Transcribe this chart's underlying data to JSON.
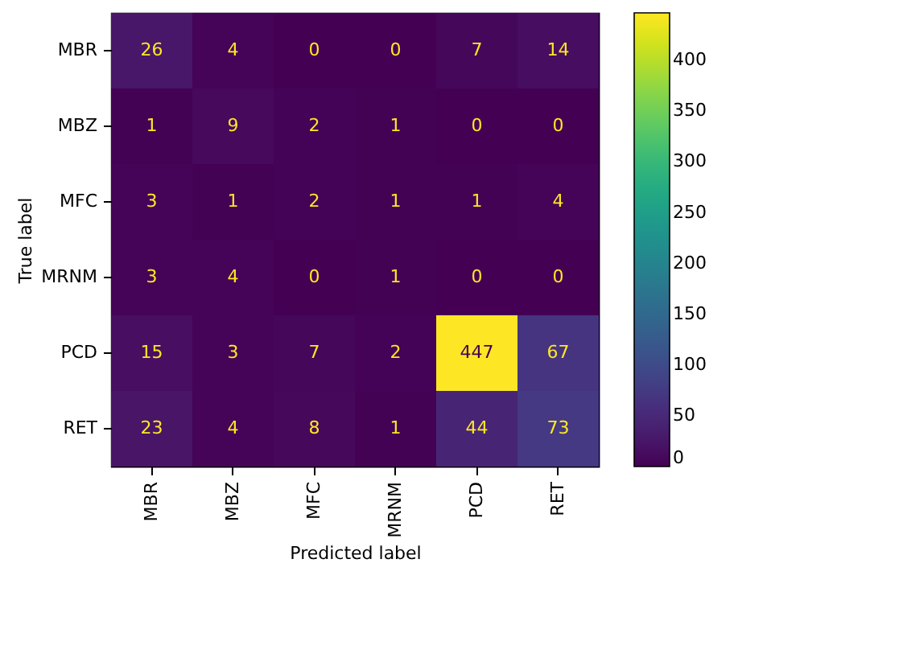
{
  "chart_data": {
    "type": "heatmap",
    "xlabel": "Predicted label",
    "ylabel": "True label",
    "categories": [
      "MBR",
      "MBZ",
      "MFC",
      "MRNM",
      "PCD",
      "RET"
    ],
    "y_categories": [
      "MBR",
      "MBZ",
      "MFC",
      "MRNM",
      "PCD",
      "RET"
    ],
    "cells": [
      [
        26,
        4,
        0,
        0,
        7,
        14
      ],
      [
        1,
        9,
        2,
        1,
        0,
        0
      ],
      [
        3,
        1,
        2,
        1,
        1,
        4
      ],
      [
        3,
        4,
        0,
        1,
        0,
        0
      ],
      [
        15,
        3,
        7,
        2,
        447,
        67
      ],
      [
        23,
        4,
        8,
        1,
        44,
        73
      ]
    ],
    "data_labels": true,
    "clim": [
      0,
      447
    ],
    "cticks": [
      0,
      50,
      100,
      150,
      200,
      250,
      300,
      350,
      400
    ]
  }
}
